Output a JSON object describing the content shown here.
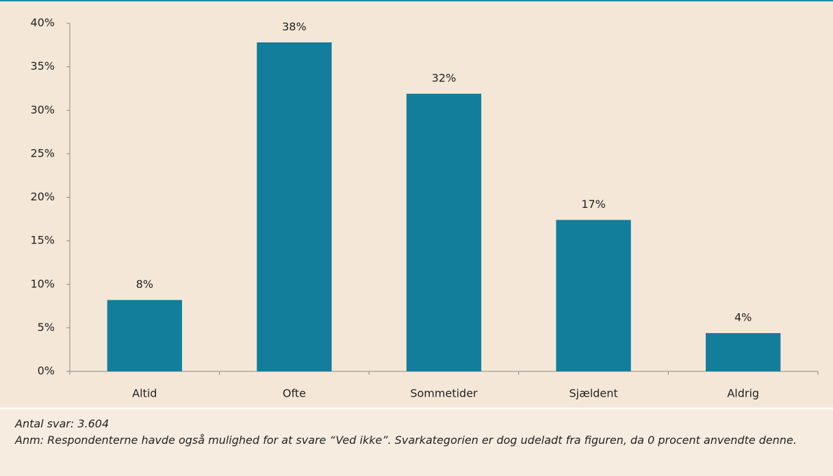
{
  "chart_data": {
    "type": "bar",
    "categories": [
      "Altid",
      "Ofte",
      "Sommetider",
      "Sjældent",
      "Aldrig"
    ],
    "values": [
      8.2,
      37.8,
      31.9,
      17.4,
      4.4
    ],
    "value_labels": [
      "8%",
      "38%",
      "32%",
      "17%",
      "4%"
    ],
    "color": "#127e9c",
    "ylim": [
      0,
      40
    ],
    "yticks": [
      {
        "value": 0,
        "label": "0%"
      },
      {
        "value": 5,
        "label": "5%"
      },
      {
        "value": 10,
        "label": "10%"
      },
      {
        "value": 15,
        "label": "15%"
      },
      {
        "value": 20,
        "label": "20%"
      },
      {
        "value": 25,
        "label": "25%"
      },
      {
        "value": 30,
        "label": "30%"
      },
      {
        "value": 35,
        "label": "35%"
      },
      {
        "value": 40,
        "label": "40%"
      }
    ],
    "grid": false,
    "notes": [
      "Antal svar: 3.604",
      "Anm: Respondenterne havde også mulighed for at svare “Ved ikke”. Svarkategorien er dog udeladt fra figuren, da 0 procent anvendte denne."
    ]
  }
}
